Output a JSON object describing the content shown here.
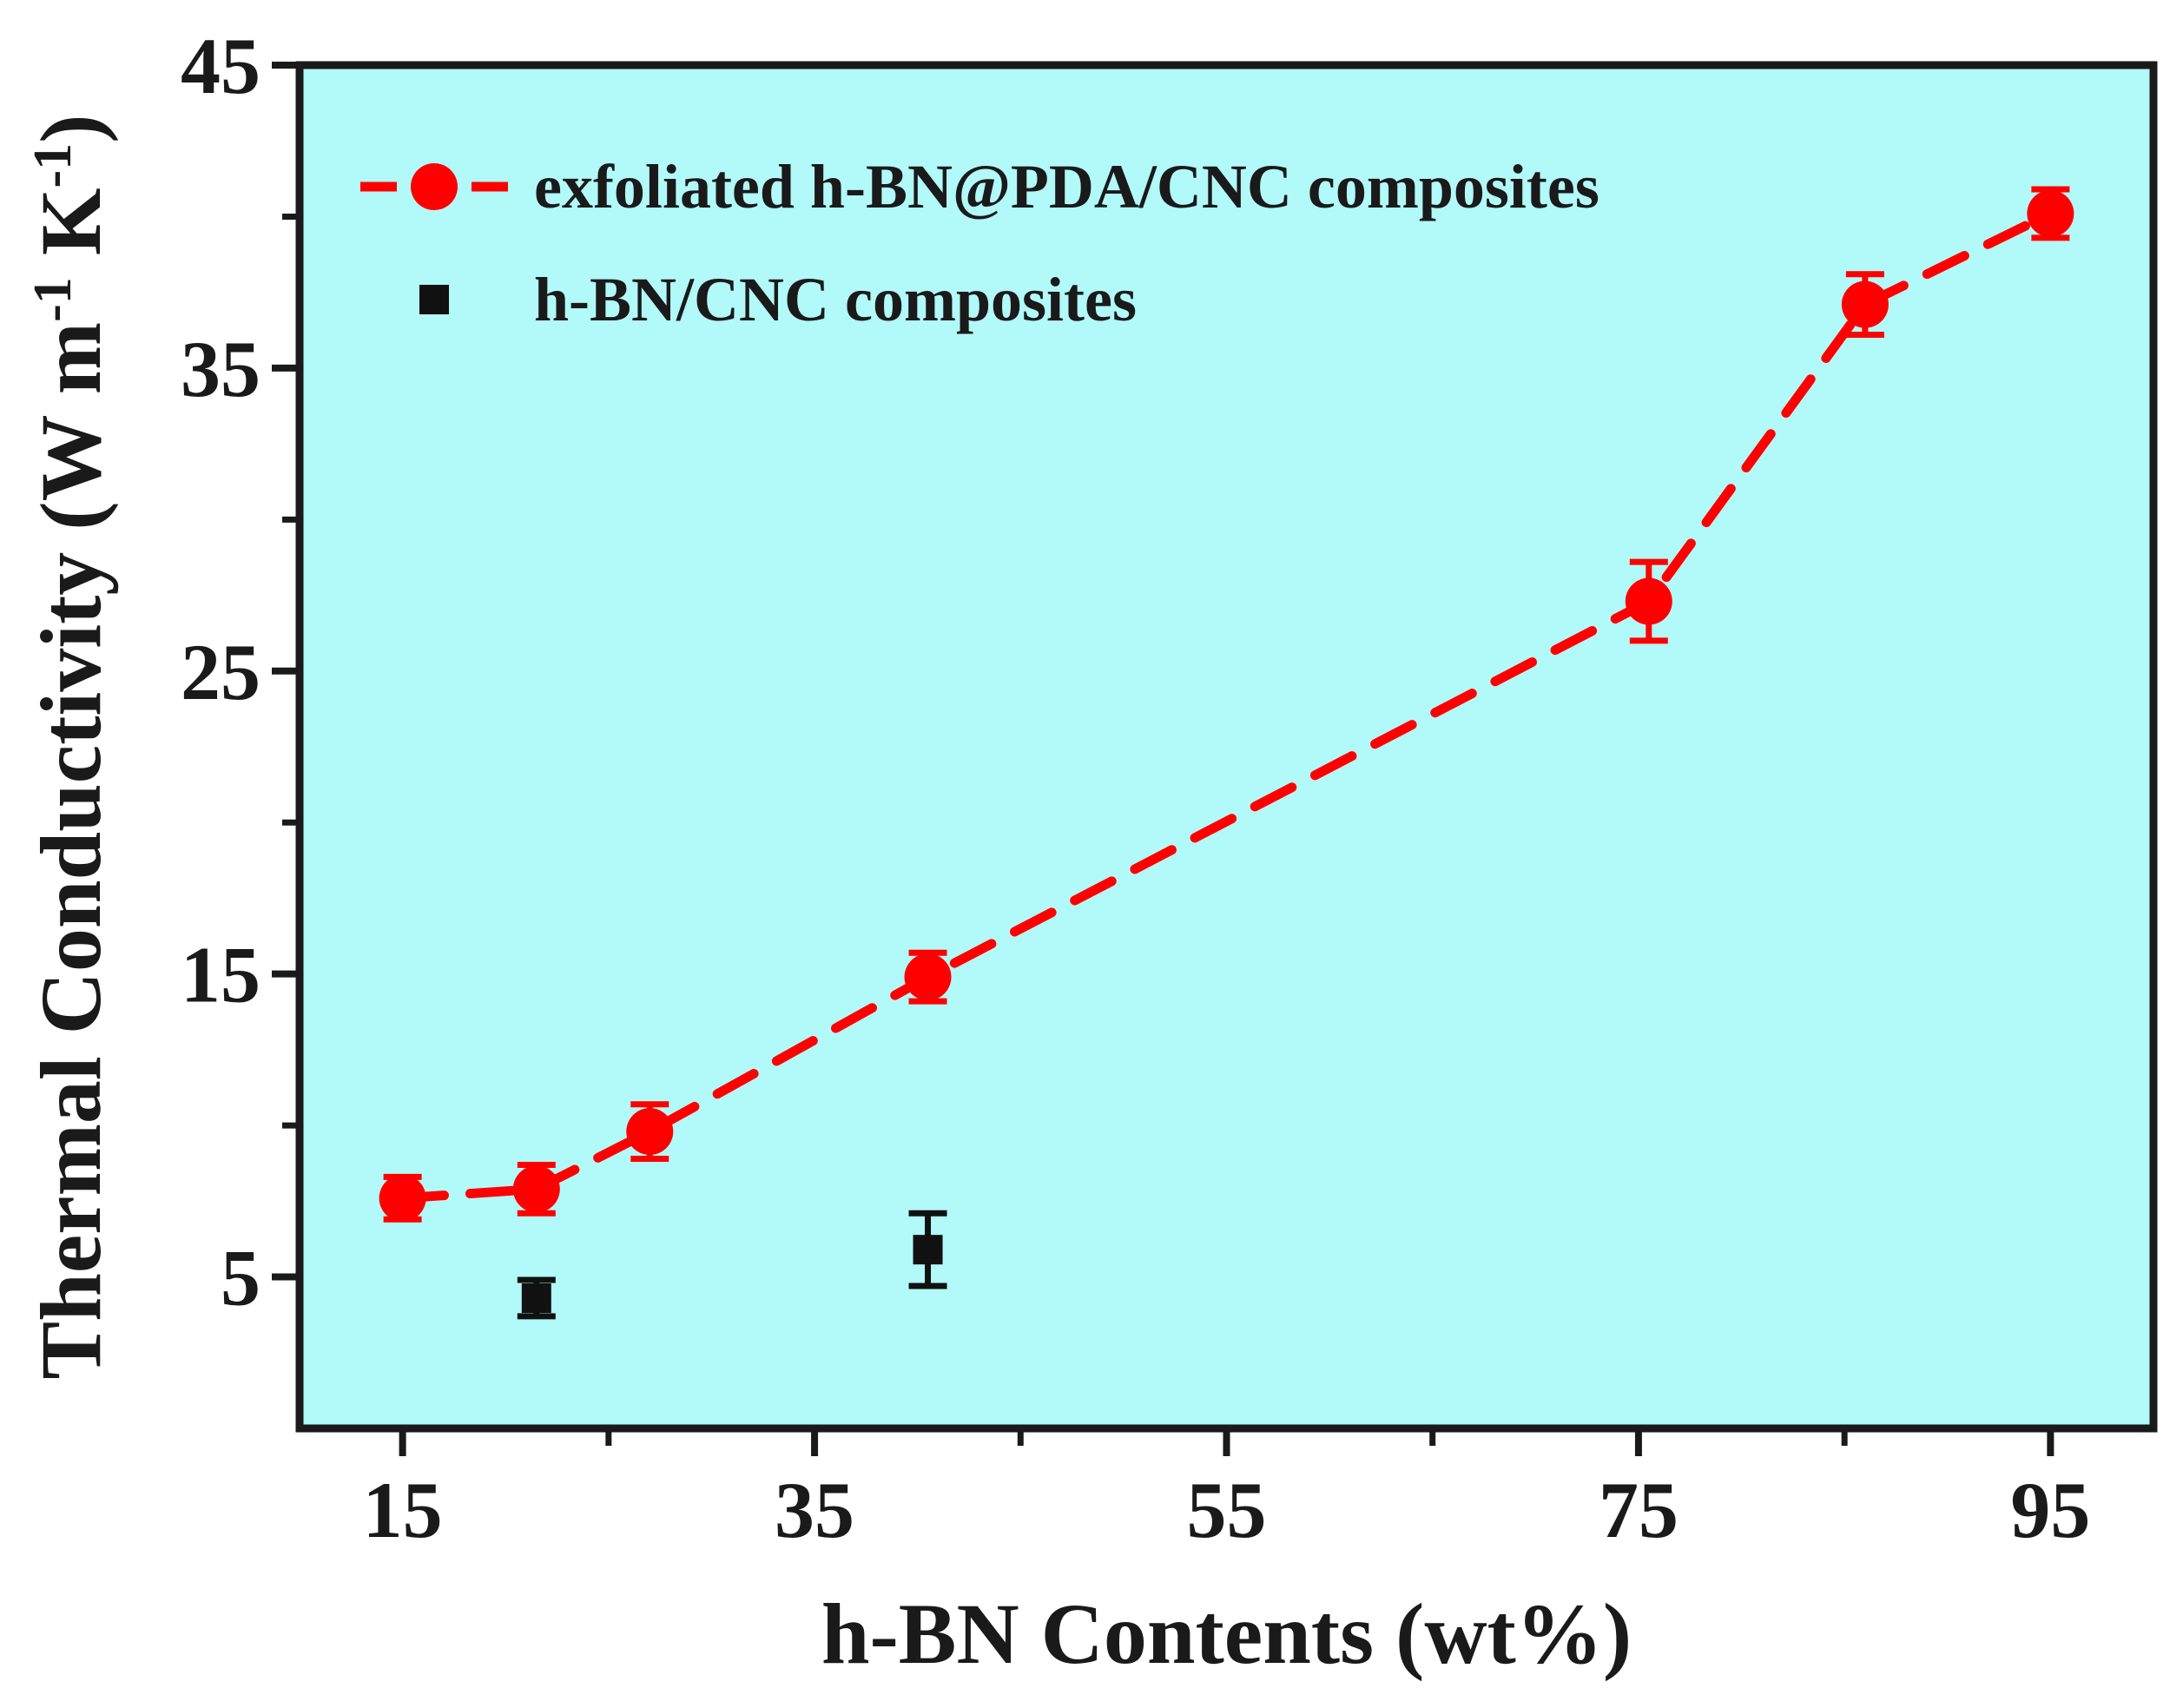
{
  "chart_data": {
    "type": "scatter",
    "xlabel": "h-BN Contents (wt%)",
    "ylabel": {
      "main": "Thermal Conductivity (W m",
      "sup1": "-1",
      "mid": " K",
      "sup2": "-1",
      "end": ")"
    },
    "xlim": [
      10,
      100
    ],
    "ylim": [
      0,
      45
    ],
    "xticks": [
      15,
      35,
      55,
      75,
      95
    ],
    "xticks_minor": [
      25,
      45,
      65,
      85
    ],
    "yticks": [
      5,
      15,
      25,
      35,
      45
    ],
    "yticks_minor": [
      10,
      20,
      30,
      40
    ],
    "grid": false,
    "background": "#b2f9f9",
    "legend_position": "top-left",
    "series": [
      {
        "name": "exfoliated h-BN@PDA/CNC composites",
        "color": "#ff0000",
        "marker": "circle",
        "line": "dashed",
        "x": [
          15,
          21.5,
          27,
          40.5,
          75.5,
          86,
          95
        ],
        "y": [
          7.6,
          7.9,
          9.8,
          14.9,
          27.3,
          37.1,
          40.1
        ],
        "yerr": [
          0.7,
          0.8,
          0.9,
          0.8,
          1.3,
          1.0,
          0.8
        ]
      },
      {
        "name": "h-BN/CNC composites",
        "color": "#111111",
        "marker": "square",
        "line": "none",
        "x": [
          21.5,
          40.5
        ],
        "y": [
          4.3,
          5.9
        ],
        "yerr": [
          0.6,
          1.2
        ]
      }
    ]
  }
}
